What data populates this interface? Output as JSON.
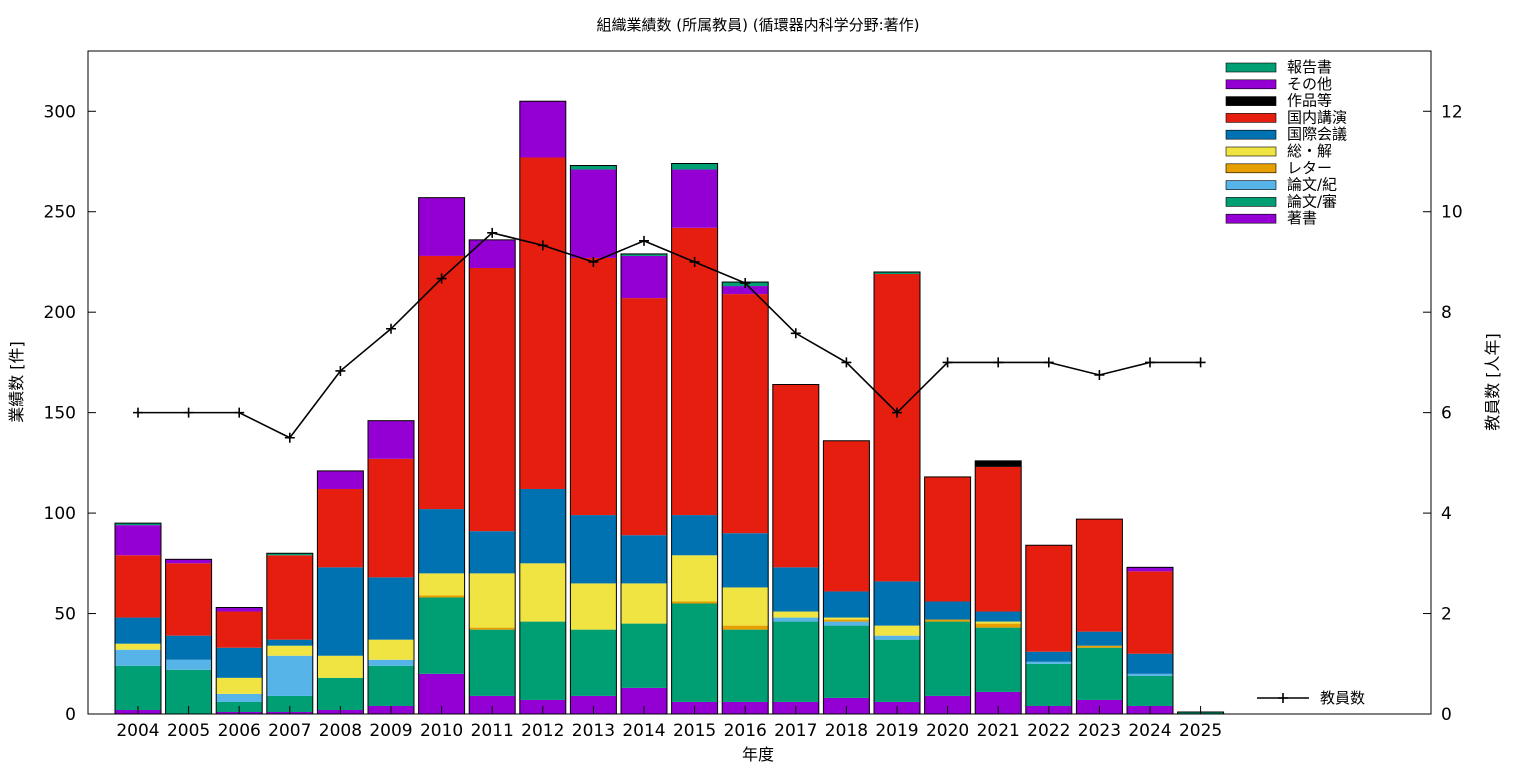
{
  "chart_data": {
    "type": "bar",
    "title": "組織業績数 (所属教員) (循環器内科学分野:著作)",
    "xlabel": "年度",
    "ylabel": "業績数 [件]",
    "y2label": "教員数 [人年]",
    "ylim": [
      0,
      330
    ],
    "y2lim": [
      0,
      13.2
    ],
    "yticks": [
      0,
      50,
      100,
      150,
      200,
      250,
      300
    ],
    "y2ticks": [
      0,
      2,
      4,
      6,
      8,
      10,
      12
    ],
    "categories": [
      "2004",
      "2005",
      "2006",
      "2007",
      "2008",
      "2009",
      "2010",
      "2011",
      "2012",
      "2013",
      "2014",
      "2015",
      "2016",
      "2017",
      "2018",
      "2019",
      "2020",
      "2021",
      "2022",
      "2023",
      "2024",
      "2025"
    ],
    "stacked": true,
    "grid": false,
    "legend_position": "top-right",
    "series": [
      {
        "name": "著書",
        "color": "#9400d3",
        "values": [
          2,
          0,
          1,
          1,
          2,
          4,
          20,
          9,
          7,
          9,
          13,
          6,
          6,
          6,
          8,
          6,
          9,
          11,
          4,
          7,
          4,
          0
        ]
      },
      {
        "name": "論文/審",
        "color": "#009e73",
        "values": [
          22,
          22,
          5,
          8,
          16,
          20,
          38,
          33,
          39,
          33,
          32,
          49,
          36,
          40,
          36,
          31,
          37,
          32,
          21,
          26,
          15,
          1
        ]
      },
      {
        "name": "論文/紀",
        "color": "#56b4e9",
        "values": [
          8,
          5,
          4,
          20,
          0,
          3,
          0,
          0,
          0,
          0,
          0,
          0,
          0,
          2,
          2,
          2,
          0,
          0,
          1,
          0,
          1,
          0
        ]
      },
      {
        "name": "レター",
        "color": "#e69f00",
        "values": [
          0,
          0,
          0,
          0,
          0,
          0,
          1,
          1,
          0,
          0,
          0,
          1,
          2,
          0,
          1,
          0,
          1,
          2,
          0,
          1,
          0,
          0
        ]
      },
      {
        "name": "総・解",
        "color": "#f0e442",
        "values": [
          3,
          0,
          8,
          5,
          11,
          10,
          11,
          27,
          29,
          23,
          20,
          23,
          19,
          3,
          1,
          5,
          0,
          1,
          0,
          0,
          0,
          0
        ]
      },
      {
        "name": "国際会議",
        "color": "#0072b2",
        "values": [
          13,
          12,
          15,
          3,
          44,
          31,
          32,
          21,
          37,
          34,
          24,
          20,
          27,
          22,
          13,
          22,
          9,
          5,
          5,
          7,
          10,
          0
        ]
      },
      {
        "name": "国内講演",
        "color": "#e51e10",
        "values": [
          31,
          36,
          18,
          42,
          39,
          59,
          126,
          131,
          165,
          128,
          118,
          143,
          119,
          91,
          75,
          153,
          62,
          72,
          53,
          56,
          41,
          0
        ]
      },
      {
        "name": "作品等",
        "color": "#000000",
        "values": [
          0,
          0,
          0,
          0,
          0,
          0,
          0,
          0,
          0,
          0,
          0,
          0,
          0,
          0,
          0,
          0,
          0,
          3,
          0,
          0,
          0,
          0
        ]
      },
      {
        "name": "その他",
        "color": "#9400d3",
        "values": [
          15,
          2,
          2,
          0,
          9,
          19,
          29,
          14,
          28,
          44,
          21,
          29,
          4,
          0,
          0,
          0,
          0,
          0,
          0,
          0,
          2,
          0
        ]
      },
      {
        "name": "報告書",
        "color": "#009e73",
        "values": [
          1,
          0,
          0,
          1,
          0,
          0,
          0,
          0,
          0,
          2,
          1,
          3,
          2,
          0,
          0,
          1,
          0,
          0,
          0,
          0,
          0,
          0
        ]
      }
    ],
    "line_series": {
      "name": "教員数",
      "axis": "y2",
      "color": "#000000",
      "categories": [
        "2004",
        "2005",
        "2006",
        "2007",
        "2008",
        "2009",
        "2010",
        "2011",
        "2012",
        "2013",
        "2014",
        "2015",
        "2016",
        "2017",
        "2018",
        "2019",
        "2020",
        "2021",
        "2022",
        "2023",
        "2024",
        "2025"
      ],
      "values": [
        6,
        6,
        6,
        5.5,
        6.83,
        7.67,
        8.67,
        9.58,
        9.33,
        9,
        9.42,
        9,
        8.58,
        7.58,
        7,
        6,
        7,
        7,
        7,
        6.75,
        7,
        7
      ]
    }
  }
}
